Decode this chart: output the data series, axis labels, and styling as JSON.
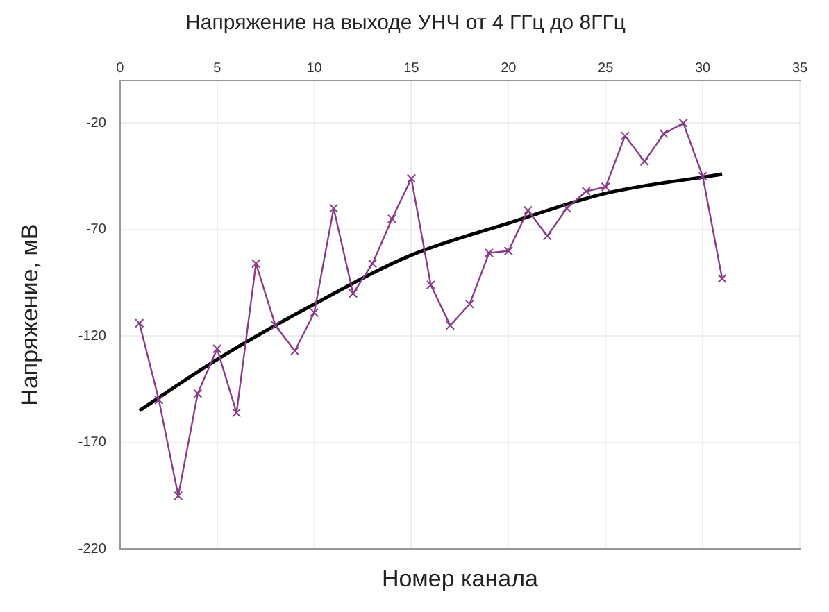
{
  "chart_data": {
    "type": "line",
    "title": "Напряжение на выходе УНЧ от 4 ГГц до 8ГГц",
    "xlabel": "Номер канала",
    "ylabel": "Напряжение, мВ",
    "x": [
      1,
      2,
      3,
      4,
      5,
      6,
      7,
      8,
      9,
      10,
      11,
      12,
      13,
      14,
      15,
      16,
      17,
      18,
      19,
      20,
      21,
      22,
      23,
      24,
      25,
      26,
      27,
      28,
      29,
      30,
      31
    ],
    "series": [
      {
        "color": "#8b3a8b",
        "marker": "cross",
        "values": [
          -114,
          -150,
          -195,
          -147,
          -126,
          -156,
          -86,
          -115,
          -127,
          -109,
          -60,
          -100,
          -86,
          -65,
          -46,
          -96,
          -115,
          -105,
          -81,
          -80,
          -61,
          -73,
          -60,
          -52,
          -50,
          -26,
          -38,
          -25,
          -20,
          -45,
          -93
        ]
      },
      {
        "type": "line",
        "color": "#000000",
        "marker": "none",
        "x": [
          1,
          5,
          10,
          15,
          20,
          25,
          31
        ],
        "values": [
          -155,
          -131,
          -105,
          -82,
          -67,
          -53,
          -44
        ]
      }
    ],
    "xlim": [
      0,
      35
    ],
    "xticks": [
      0,
      5,
      10,
      15,
      20,
      25,
      30,
      35
    ],
    "ylim": [
      -220,
      0
    ],
    "yticks": [
      -220,
      -170,
      -120,
      -70,
      -20
    ],
    "grid": true,
    "legend": false
  }
}
